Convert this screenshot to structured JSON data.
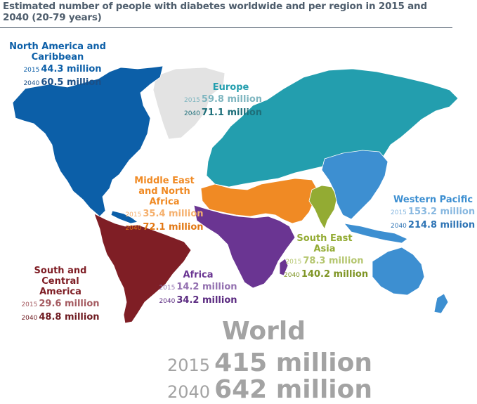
{
  "title": "Estimated number of people with diabetes worldwide and per region in 2015 and 2040 (20-79 years)",
  "colors": {
    "north_america": "#0c5fa8",
    "europe": "#239eae",
    "mena": "#f08a24",
    "south_central_america": "#7f1e25",
    "africa": "#6a3592",
    "south_east_asia": "#93ab33",
    "western_pacific": "#3d8fd1",
    "greenland": "#e3e3e3",
    "world_text": "#a3a3a3",
    "title_text": "#4e5d6c"
  },
  "regions": [
    {
      "id": "north-america",
      "name": "North America and Caribbean",
      "year_2015": "2015",
      "value_2015": "44.3 million",
      "year_2040": "2040",
      "value_2040": "60.5 million"
    },
    {
      "id": "europe",
      "name": "Europe",
      "year_2015": "2015",
      "value_2015": "59.8 million",
      "year_2040": "2040",
      "value_2040": "71.1 million"
    },
    {
      "id": "mena",
      "name": "Middle East and North Africa",
      "year_2015": "2015",
      "value_2015": "35.4 million",
      "year_2040": "2040",
      "value_2040": "72.1 million"
    },
    {
      "id": "western-pacific",
      "name": "Western Pacific",
      "year_2015": "2015",
      "value_2015": "153.2 million",
      "year_2040": "2040",
      "value_2040": "214.8 million"
    },
    {
      "id": "south-east-asia",
      "name": "South East Asia",
      "year_2015": "2015",
      "value_2015": "78.3 million",
      "year_2040": "2040",
      "value_2040": "140.2 million"
    },
    {
      "id": "south-central-america",
      "name": "South and Central America",
      "year_2015": "2015",
      "value_2015": "29.6 million",
      "year_2040": "2040",
      "value_2040": "48.8 million"
    },
    {
      "id": "africa",
      "name": "Africa",
      "year_2015": "2015",
      "value_2015": "14.2 million",
      "year_2040": "2040",
      "value_2040": "34.2 million"
    }
  ],
  "world": {
    "name": "World",
    "year_2015": "2015",
    "value_2015": "415 million",
    "year_2040": "2040",
    "value_2040": "642 million"
  }
}
